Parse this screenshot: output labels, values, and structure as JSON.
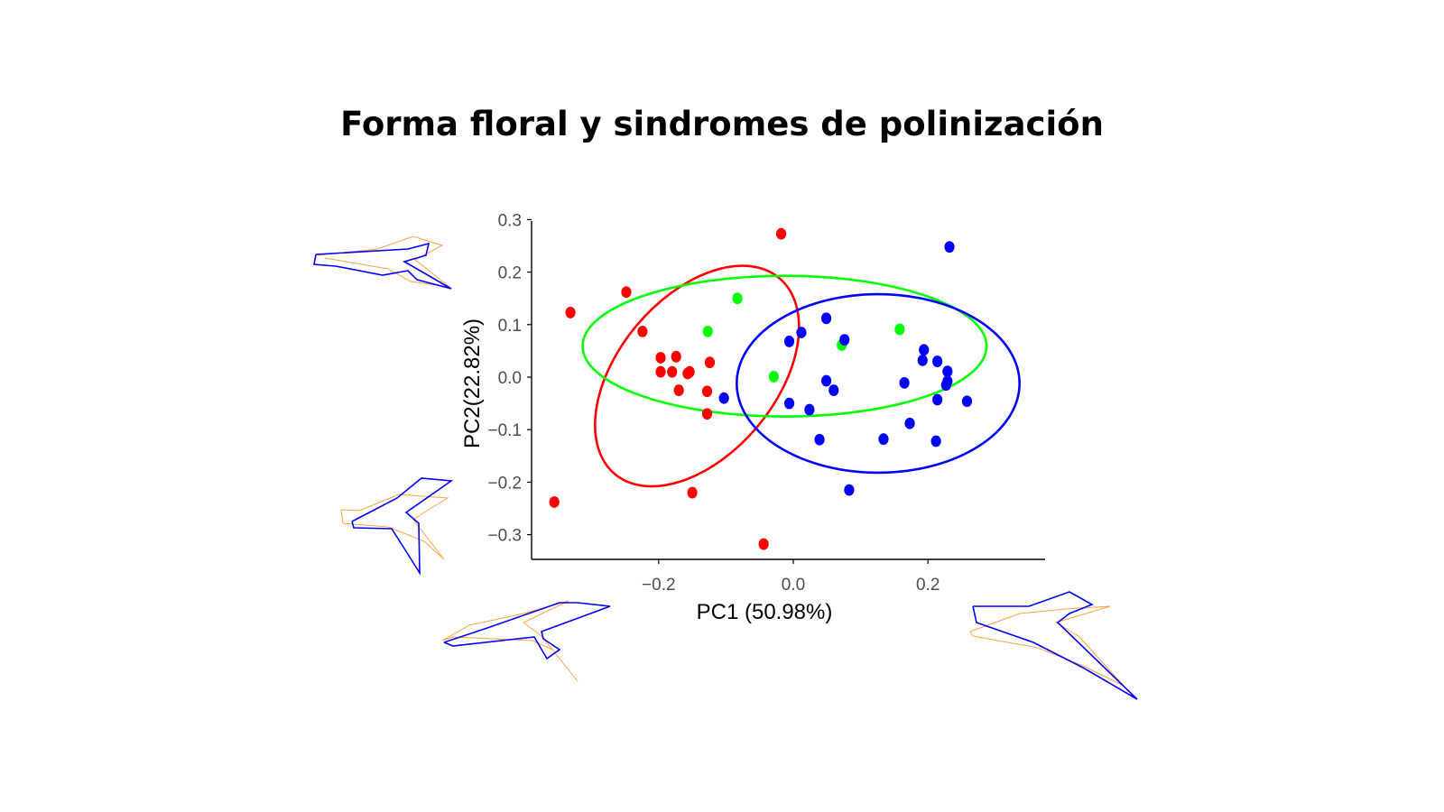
{
  "title": "Forma floral y sindromes de polinización",
  "chart_data": {
    "type": "scatter",
    "title": "Forma floral y sindromes de polinización",
    "xlabel": "PC1 (50.98%)",
    "ylabel": "PC2(22.82%)",
    "xlim": [
      -0.38,
      0.38
    ],
    "ylim": [
      -0.34,
      0.31
    ],
    "x_ticks": [
      -0.2,
      0.0,
      0.2
    ],
    "x_tick_labels": [
      "−0.2",
      "0.0",
      "0.2"
    ],
    "y_ticks": [
      0.3,
      0.2,
      0.1,
      0.0,
      -0.1,
      -0.2,
      -0.3
    ],
    "y_tick_labels": [
      "0.3",
      "0.2",
      "0.1",
      "0.0",
      "−0.1",
      "−0.2",
      "−0.3"
    ],
    "grid": false,
    "legend": "none",
    "series": [
      {
        "color": "#ff0000",
        "points": [
          [
            -0.018,
            0.273
          ],
          [
            -0.248,
            0.162
          ],
          [
            -0.331,
            0.123
          ],
          [
            -0.224,
            0.087
          ],
          [
            -0.174,
            0.039
          ],
          [
            -0.197,
            0.037
          ],
          [
            -0.197,
            0.01
          ],
          [
            -0.18,
            0.01
          ],
          [
            -0.157,
            0.007
          ],
          [
            -0.154,
            0.01
          ],
          [
            -0.17,
            -0.025
          ],
          [
            -0.124,
            0.028
          ],
          [
            -0.128,
            -0.027
          ],
          [
            -0.128,
            -0.07
          ],
          [
            -0.15,
            -0.22
          ],
          [
            -0.355,
            -0.238
          ],
          [
            -0.044,
            -0.318
          ]
        ],
        "ellipse": {
          "cx": -0.143,
          "cy": 0.002,
          "rx": 0.19,
          "ry": 0.15,
          "angle_deg": -50
        }
      },
      {
        "color": "#00ff00",
        "points": [
          [
            -0.083,
            0.15
          ],
          [
            -0.127,
            0.087
          ],
          [
            0.158,
            0.091
          ],
          [
            0.072,
            0.061
          ],
          [
            -0.029,
            0.001
          ]
        ],
        "ellipse": {
          "cx": -0.013,
          "cy": 0.059,
          "rx": 0.3,
          "ry": 0.134,
          "angle_deg": 0
        }
      },
      {
        "color": "#0000ff",
        "points": [
          [
            0.232,
            0.248
          ],
          [
            0.049,
            0.112
          ],
          [
            0.012,
            0.085
          ],
          [
            0.076,
            0.071
          ],
          [
            -0.006,
            0.068
          ],
          [
            0.194,
            0.052
          ],
          [
            0.214,
            0.03
          ],
          [
            0.192,
            0.032
          ],
          [
            0.229,
            0.011
          ],
          [
            0.229,
            -0.008
          ],
          [
            0.227,
            -0.015
          ],
          [
            0.049,
            -0.007
          ],
          [
            0.165,
            -0.011
          ],
          [
            0.06,
            -0.025
          ],
          [
            0.258,
            -0.046
          ],
          [
            0.214,
            -0.043
          ],
          [
            -0.103,
            -0.04
          ],
          [
            -0.006,
            -0.05
          ],
          [
            0.024,
            -0.062
          ],
          [
            0.173,
            -0.088
          ],
          [
            0.039,
            -0.119
          ],
          [
            0.134,
            -0.118
          ],
          [
            0.212,
            -0.122
          ],
          [
            0.083,
            -0.215
          ]
        ],
        "ellipse": {
          "cx": 0.126,
          "cy": -0.012,
          "rx": 0.21,
          "ry": 0.17,
          "angle_deg": 0
        }
      }
    ]
  },
  "shape_diagrams": {
    "outline_colors": {
      "consensus": "#0000ff",
      "deformed": "#ffa040"
    }
  }
}
